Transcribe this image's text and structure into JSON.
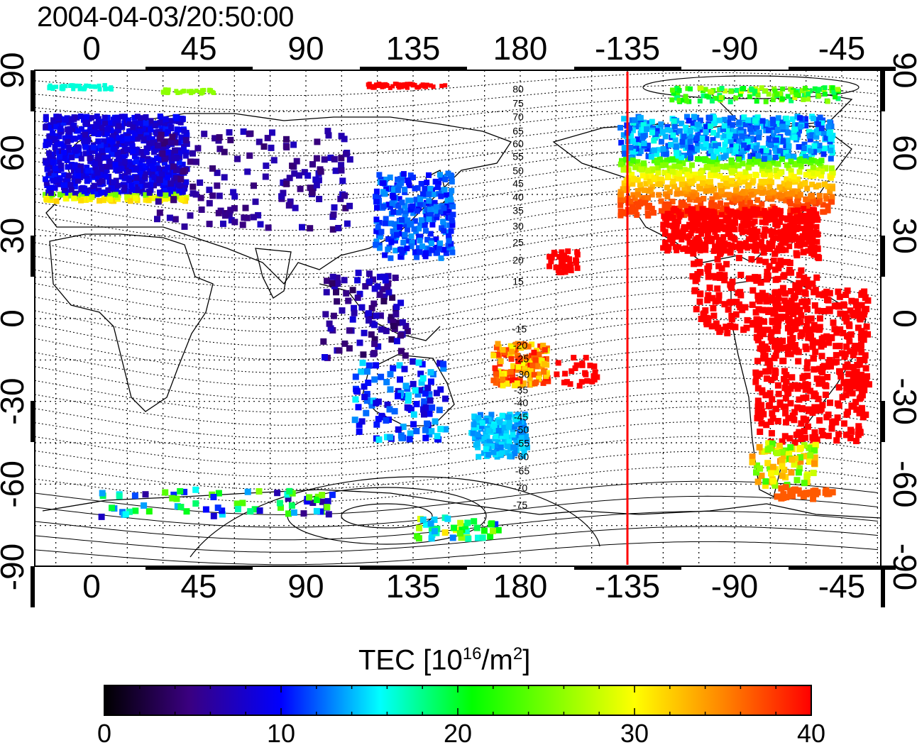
{
  "title": "2004-04-03/20:50:00",
  "top_lon_ticks": [
    "0",
    "45",
    "90",
    "135",
    "180",
    "-135",
    "-90",
    "-45"
  ],
  "bottom_lon_ticks": [
    "0",
    "45",
    "90",
    "135",
    "180",
    "-135",
    "-90",
    "-45"
  ],
  "lat_ticks": [
    "90",
    "60",
    "30",
    "0",
    "-30",
    "-60",
    "-90"
  ],
  "contour_labels": [
    "80",
    "75",
    "70",
    "65",
    "60",
    "55",
    "50",
    "45",
    "40",
    "35",
    "30",
    "25",
    "20",
    "15",
    "-15",
    "-20",
    "-25",
    "-30",
    "-35",
    "-40",
    "-45",
    "-50",
    "-55",
    "-60",
    "-65",
    "-70",
    "-75"
  ],
  "colorbar": {
    "title_prefix": "TEC  [10",
    "title_sup1": "16",
    "title_mid": "/m",
    "title_sup2": "2",
    "title_suffix": "]",
    "ticks": [
      "0",
      "10",
      "20",
      "30",
      "40"
    ],
    "min": 0,
    "max": 40,
    "colors": [
      "#000000",
      "#3a0080",
      "#0000ff",
      "#00ffff",
      "#00ff00",
      "#ffff00",
      "#ff8000",
      "#ff0000"
    ]
  },
  "terminator_longitude": -135,
  "terminator_color": "#ff0000"
}
